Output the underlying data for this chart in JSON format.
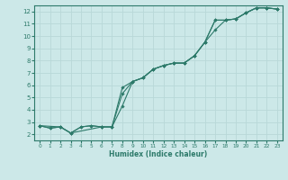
{
  "xlabel": "Humidex (Indice chaleur)",
  "bg_color": "#cce8e8",
  "grid_color": "#b8d8d8",
  "line_color": "#2d7a6a",
  "xlim": [
    -0.5,
    23.5
  ],
  "ylim": [
    1.5,
    12.5
  ],
  "xticks": [
    0,
    1,
    2,
    3,
    4,
    5,
    6,
    7,
    8,
    9,
    10,
    11,
    12,
    13,
    14,
    15,
    16,
    17,
    18,
    19,
    20,
    21,
    22,
    23
  ],
  "yticks": [
    2,
    3,
    4,
    5,
    6,
    7,
    8,
    9,
    10,
    11,
    12
  ],
  "line1_x": [
    0,
    1,
    2,
    3,
    4,
    5,
    6,
    7,
    8,
    9,
    10,
    11,
    12,
    13,
    14,
    15,
    16,
    17,
    18,
    19,
    20,
    21,
    22,
    23
  ],
  "line1_y": [
    2.7,
    2.5,
    2.6,
    2.1,
    2.6,
    2.7,
    2.6,
    2.6,
    4.3,
    6.3,
    6.6,
    7.3,
    7.6,
    7.8,
    7.8,
    8.4,
    9.5,
    10.5,
    11.3,
    11.4,
    11.9,
    12.3,
    12.3,
    12.2
  ],
  "line2_x": [
    0,
    1,
    2,
    3,
    4,
    5,
    6,
    7,
    8,
    9,
    10,
    11,
    12,
    13,
    14,
    15,
    16,
    17,
    18,
    19,
    20,
    21,
    22,
    23
  ],
  "line2_y": [
    2.7,
    2.5,
    2.6,
    2.1,
    2.6,
    2.7,
    2.6,
    2.6,
    5.3,
    6.3,
    6.6,
    7.3,
    7.6,
    7.8,
    7.8,
    8.4,
    9.5,
    11.3,
    11.3,
    11.4,
    11.9,
    12.3,
    12.3,
    12.2
  ],
  "line3_x": [
    0,
    2,
    3,
    6,
    7,
    8,
    9,
    10,
    11,
    12,
    13,
    14,
    15,
    16,
    17,
    18,
    19,
    20,
    21,
    22,
    23
  ],
  "line3_y": [
    2.7,
    2.6,
    2.1,
    2.6,
    2.6,
    5.8,
    6.3,
    6.6,
    7.3,
    7.6,
    7.8,
    7.8,
    8.4,
    9.5,
    11.3,
    11.3,
    11.4,
    11.9,
    12.3,
    12.3,
    12.2
  ]
}
